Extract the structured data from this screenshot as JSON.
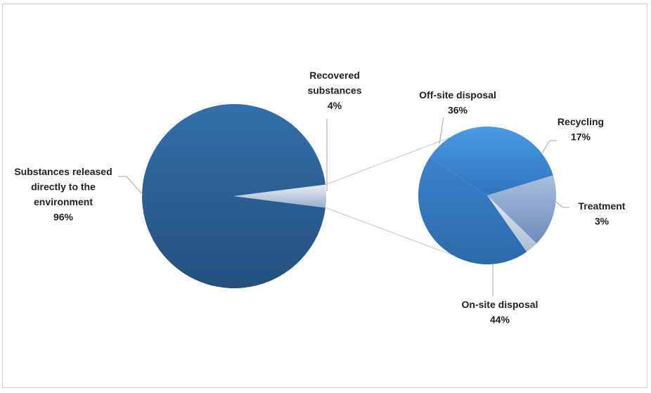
{
  "chart_data": {
    "type": "pie",
    "title": "",
    "main_pie": {
      "slices": [
        {
          "label_lines": [
            "Substances released",
            "directly to the",
            "environment"
          ],
          "value": 96,
          "value_label": "96%"
        },
        {
          "label_lines": [
            "Recovered",
            "substances"
          ],
          "value": 4,
          "value_label": "4%"
        }
      ]
    },
    "secondary_pie": {
      "slices": [
        {
          "label_lines": [
            "Off-site disposal"
          ],
          "value": 36,
          "value_label": "36%"
        },
        {
          "label_lines": [
            "Recycling"
          ],
          "value": 17,
          "value_label": "17%"
        },
        {
          "label_lines": [
            "Treatment"
          ],
          "value": 3,
          "value_label": "3%"
        },
        {
          "label_lines": [
            "On-site disposal"
          ],
          "value": 44,
          "value_label": "44%"
        }
      ]
    },
    "colors": {
      "main_large": "#2b5f96",
      "main_small": "#b9c5d8",
      "off_site": "#3a8ad8",
      "recycling": "#8fa9ce",
      "treatment": "#c4cfe0",
      "on_site": "#3577c1",
      "leader": "#a6a6a6"
    }
  }
}
